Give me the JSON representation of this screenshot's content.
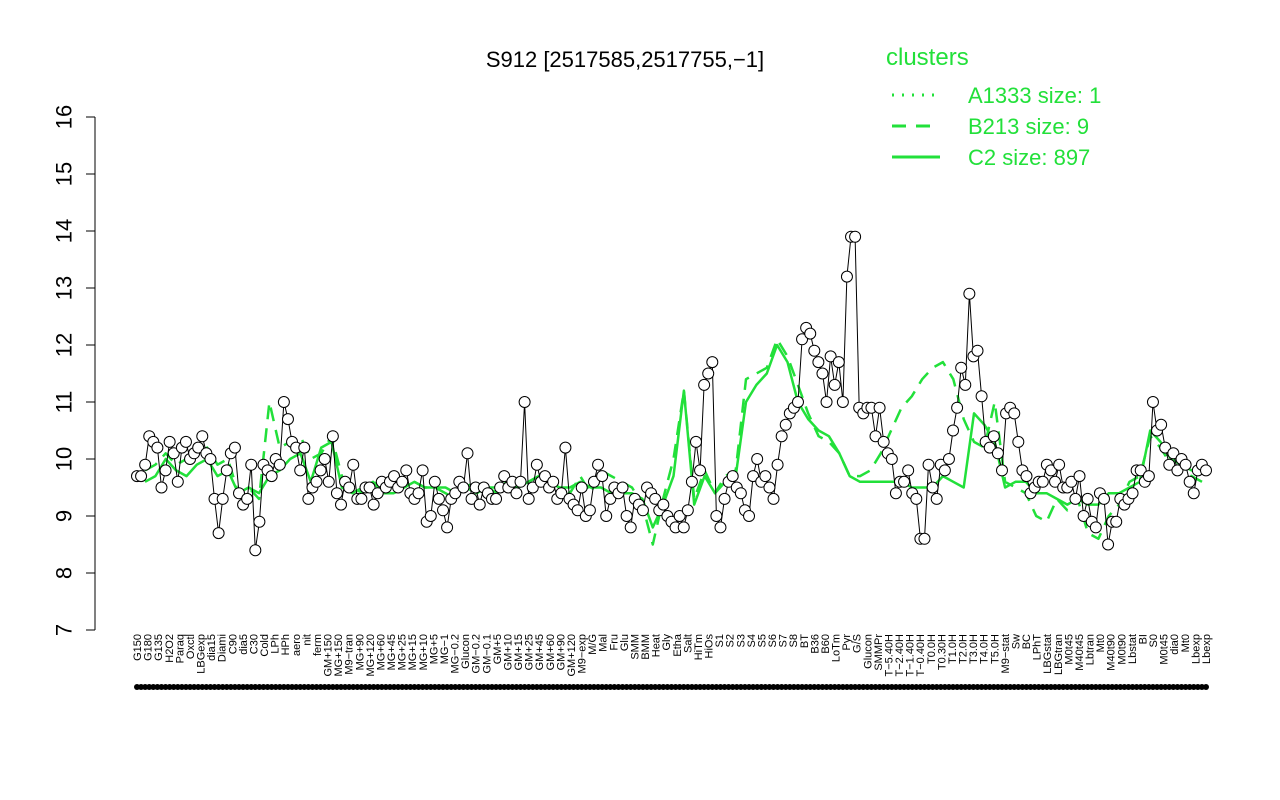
{
  "chart_data": {
    "type": "line",
    "title": "S912 [2517585,2517755,−1]",
    "xlabel": "",
    "ylabel": "",
    "ylim": [
      7,
      16
    ],
    "y_ticks": [
      "7",
      "8",
      "9",
      "10",
      "11",
      "12",
      "13",
      "14",
      "15",
      "16"
    ],
    "x_tick_labels": [
      "G150",
      "G180",
      "G135",
      "H2O2",
      "Paraq",
      "Oxctl",
      "LBGexp",
      "dia15",
      "Diami",
      "C90",
      "dia5",
      "C30",
      "Cold",
      "LPh",
      "HPh",
      "aero",
      "nit",
      "ferm",
      "GM+150",
      "MG+150",
      "M9−tran",
      "MG+90",
      "MG+120",
      "MG+60",
      "MG+45",
      "MG+25",
      "MG+15",
      "MG+10",
      "MG+5",
      "MG−1",
      "MG−0.2",
      "Glucon",
      "GM−0.2",
      "GM−0.1",
      "GM+5",
      "GM+10",
      "GM+15",
      "GM+25",
      "GM+45",
      "GM+60",
      "GM+90",
      "GM+120",
      "M9−exp",
      "M/G",
      "Mal",
      "Fru",
      "Glu",
      "SMM",
      "BMM",
      "Heat",
      "Gly",
      "Etha",
      "Salt",
      "HiTm",
      "HiOs",
      "S1",
      "S2",
      "S3",
      "S4",
      "S5",
      "S6",
      "S7",
      "S8",
      "BT",
      "B36",
      "B60",
      "LoTm",
      "Pyr",
      "G/S",
      "Glucon",
      "SMMPr",
      "T−5.40H",
      "T−2.40H",
      "T−1.40H",
      "T−0.40H",
      "T0.0H",
      "T0.30H",
      "T1.0H",
      "T2.0H",
      "T3.0H",
      "T4.0H",
      "T5.0H",
      "M9−stat",
      "Sw",
      "BC",
      "LPhT",
      "LBGstat",
      "LBGtran",
      "M0t45",
      "M40t45",
      "Lbtran",
      "Mt0",
      "M40t90",
      "M0t90",
      "Lbstat",
      "BI",
      "S0",
      "M0t45",
      "dia0",
      "Mt0",
      "Lbexp",
      "Lbexp"
    ],
    "legend_position": "top-right",
    "legend_title": "clusters",
    "series": [
      {
        "name": "A1333 size: 1",
        "style": "dotted",
        "color": "#22e03a",
        "values": []
      },
      {
        "name": "B213 size: 9",
        "style": "dashed",
        "color": "#22e03a",
        "values": [
          9.8,
          9.9,
          10.1,
          9.9,
          10.0,
          10.1,
          10.2,
          9.9,
          10.0,
          9.4,
          9.5,
          9.3,
          11.0,
          10.2,
          10.3,
          10.4,
          10.0,
          10.1,
          10.4,
          9.7,
          9.5,
          9.4,
          9.6,
          9.5,
          9.4,
          9.5,
          9.6,
          9.5,
          9.5,
          9.4,
          9.3,
          9.6,
          9.4,
          9.5,
          9.4,
          9.5,
          9.5,
          9.6,
          9.7,
          9.6,
          9.5,
          9.4,
          9.7,
          9.4,
          9.8,
          9.7,
          9.6,
          9.5,
          9.2,
          8.5,
          9.3,
          10.0,
          11.2,
          9.3,
          9.8,
          9.4,
          9.7,
          9.8,
          11.4,
          11.5,
          11.6,
          12.1,
          11.8,
          11.3,
          10.8,
          10.4,
          10.3,
          10.1,
          9.7,
          9.7,
          9.8,
          10.1,
          10.5,
          10.9,
          11.1,
          11.4,
          11.6,
          11.7,
          11.4,
          10.7,
          10.3,
          10.2,
          11.0,
          9.6,
          9.5,
          9.4,
          9.0,
          8.9,
          9.3,
          9.1,
          9.3,
          8.7,
          8.6,
          9.0,
          9.2,
          9.6,
          9.7,
          10.4,
          10.2,
          9.9,
          9.8,
          9.7,
          9.6
        ]
      },
      {
        "name": "C2 size: 897",
        "style": "solid",
        "color": "#22e03a",
        "values": [
          9.6,
          9.7,
          10.0,
          9.8,
          9.7,
          9.9,
          10.0,
          9.7,
          9.8,
          9.4,
          9.5,
          9.4,
          9.7,
          9.8,
          10.0,
          10.1,
          9.6,
          10.2,
          10.3,
          9.5,
          9.4,
          9.5,
          9.6,
          9.4,
          9.4,
          9.5,
          9.6,
          9.5,
          9.5,
          9.5,
          9.4,
          9.5,
          9.4,
          9.5,
          9.5,
          9.6,
          9.5,
          9.6,
          9.7,
          9.6,
          9.5,
          9.5,
          9.6,
          9.5,
          9.5,
          9.4,
          9.4,
          9.4,
          9.3,
          8.8,
          9.2,
          9.7,
          11.2,
          9.2,
          9.7,
          9.4,
          9.6,
          9.7,
          11.0,
          11.3,
          11.5,
          12.0,
          11.7,
          11.0,
          10.7,
          10.5,
          10.4,
          10.1,
          9.7,
          9.6,
          9.6,
          9.6,
          9.6,
          9.6,
          9.5,
          9.5,
          9.5,
          9.7,
          9.6,
          9.5,
          10.8,
          10.6,
          10.3,
          9.5,
          9.6,
          9.6,
          9.4,
          9.4,
          9.3,
          9.2,
          9.3,
          9.2,
          9.2,
          9.4,
          9.4,
          9.5,
          9.6,
          10.5,
          10.3,
          10.0,
          9.9,
          9.8,
          9.8
        ]
      }
    ],
    "points_y": [
      9.7,
      9.7,
      9.9,
      10.4,
      10.3,
      10.2,
      9.5,
      9.8,
      10.3,
      10.1,
      9.6,
      10.2,
      10.3,
      10.0,
      10.1,
      10.2,
      10.4,
      10.1,
      10.0,
      9.3,
      8.7,
      9.3,
      9.8,
      10.1,
      10.2,
      9.4,
      9.2,
      9.3,
      9.9,
      8.4,
      8.9,
      9.9,
      9.8,
      9.7,
      10.0,
      9.9,
      11.0,
      10.7,
      10.3,
      10.2,
      9.8,
      10.2,
      9.3,
      9.5,
      9.6,
      9.8,
      10.0,
      9.6,
      10.4,
      9.4,
      9.2,
      9.6,
      9.5,
      9.9,
      9.3,
      9.3,
      9.5,
      9.5,
      9.2,
      9.4,
      9.6,
      9.5,
      9.6,
      9.7,
      9.5,
      9.6,
      9.8,
      9.4,
      9.3,
      9.4,
      9.8,
      8.9,
      9.0,
      9.6,
      9.3,
      9.1,
      8.8,
      9.3,
      9.4,
      9.6,
      9.5,
      10.1,
      9.3,
      9.5,
      9.2,
      9.5,
      9.4,
      9.3,
      9.3,
      9.5,
      9.7,
      9.5,
      9.6,
      9.4,
      9.6,
      11.0,
      9.3,
      9.5,
      9.9,
      9.6,
      9.7,
      9.5,
      9.6,
      9.3,
      9.4,
      10.2,
      9.3,
      9.2,
      9.1,
      9.5,
      9.0,
      9.1,
      9.6,
      9.9,
      9.7,
      9.0,
      9.3,
      9.5,
      9.4,
      9.5,
      9.0,
      8.8,
      9.3,
      9.2,
      9.1,
      9.5,
      9.4,
      9.3,
      9.1,
      9.2,
      9.0,
      8.9,
      8.8,
      9.0,
      8.8,
      9.1,
      9.6,
      10.3,
      9.8,
      11.3,
      11.5,
      11.7,
      9.0,
      8.8,
      9.3,
      9.6,
      9.7,
      9.5,
      9.4,
      9.1,
      9.0,
      9.7,
      10.0,
      9.6,
      9.7,
      9.5,
      9.3,
      9.9,
      10.4,
      10.6,
      10.8,
      10.9,
      11.0,
      12.1,
      12.3,
      12.2,
      11.9,
      11.7,
      11.5,
      11.0,
      11.8,
      11.3,
      11.7,
      11.0,
      13.2,
      13.9,
      13.9,
      10.9,
      10.8,
      10.9,
      10.9,
      10.4,
      10.9,
      10.3,
      10.1,
      10.0,
      9.4,
      9.6,
      9.6,
      9.8,
      9.4,
      9.3,
      8.6,
      8.6,
      9.9,
      9.5,
      9.3,
      9.9,
      9.8,
      10.0,
      10.5,
      10.9,
      11.6,
      11.3,
      12.9,
      11.8,
      11.9,
      11.1,
      10.3,
      10.2,
      10.4,
      10.1,
      9.8,
      10.8,
      10.9,
      10.8,
      10.3,
      9.8,
      9.7,
      9.4,
      9.5,
      9.6,
      9.6,
      9.9,
      9.8,
      9.6,
      9.9,
      9.5,
      9.5,
      9.6,
      9.3,
      9.7,
      9.0,
      9.3,
      8.9,
      8.8,
      9.4,
      9.3,
      8.5,
      8.9,
      8.9,
      9.3,
      9.2,
      9.3,
      9.4,
      9.8,
      9.8,
      9.6,
      9.7,
      11.0,
      10.5,
      10.6,
      10.2,
      9.9,
      10.1,
      9.8,
      10.0,
      9.9,
      9.6,
      9.4,
      9.8,
      9.9,
      9.8
    ]
  }
}
